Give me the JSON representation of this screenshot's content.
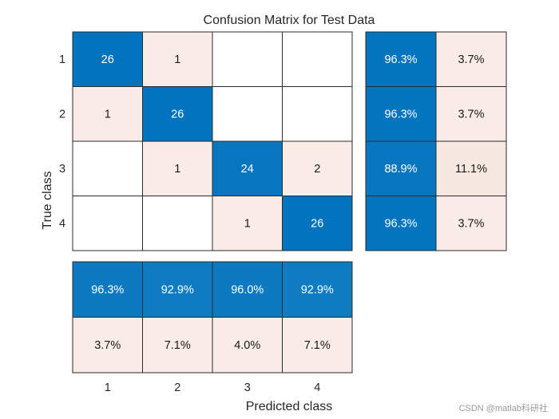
{
  "chart_data": {
    "type": "heatmap",
    "title": "Confusion Matrix for Test Data",
    "xlabel": "Predicted class",
    "ylabel": "True class",
    "classes": [
      "1",
      "2",
      "3",
      "4"
    ],
    "matrix": [
      [
        26,
        1,
        null,
        null
      ],
      [
        1,
        26,
        null,
        null
      ],
      [
        null,
        1,
        24,
        2
      ],
      [
        null,
        null,
        1,
        26
      ]
    ],
    "row_summary": [
      [
        "96.3%",
        "3.7%"
      ],
      [
        "96.3%",
        "3.7%"
      ],
      [
        "88.9%",
        "11.1%"
      ],
      [
        "96.3%",
        "3.7%"
      ]
    ],
    "column_summary": [
      [
        "96.3%",
        "92.9%",
        "96.0%",
        "92.9%"
      ],
      [
        "3.7%",
        "7.1%",
        "4.0%",
        "7.1%"
      ]
    ],
    "colors": {
      "correct_dark": "#0072bd",
      "error_light": "#f9ebe6",
      "border": "#2b2b2b",
      "text_light": "#ffffff",
      "text_dark": "#1a1a1a"
    }
  },
  "watermark": "CSDN @matlab科研社"
}
